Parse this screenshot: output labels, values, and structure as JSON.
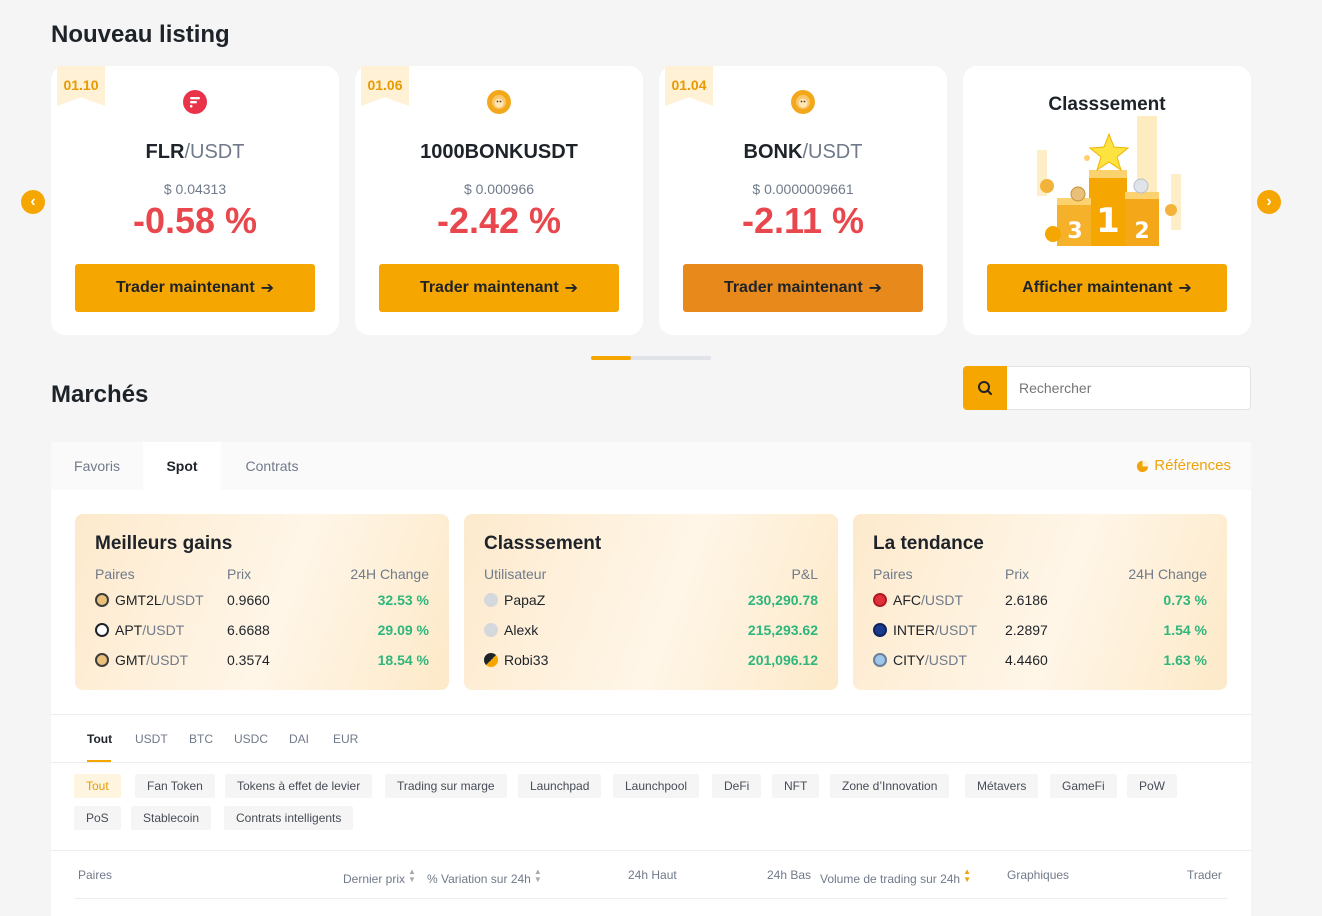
{
  "listing": {
    "title": "Nouveau listing",
    "cards": [
      {
        "date": "01.10",
        "base": "FLR",
        "quote": "/USDT",
        "price": "$ 0.04313",
        "change": "-0.58 %",
        "button": "Trader maintenant"
      },
      {
        "date": "01.06",
        "base": "1000BONKUSDT",
        "quote": "",
        "price": "$ 0.000966",
        "change": "-2.42 %",
        "button": "Trader maintenant"
      },
      {
        "date": "01.04",
        "base": "BONK",
        "quote": "/USDT",
        "price": "$ 0.0000009661",
        "change": "-2.11 %",
        "button": "Trader maintenant"
      }
    ],
    "ranking_card": {
      "title": "Classsement",
      "button": "Afficher maintenant"
    }
  },
  "markets": {
    "title": "Marchés",
    "search_placeholder": "Rechercher",
    "tabs": [
      "Favoris",
      "Spot",
      "Contrats"
    ],
    "active_tab": "Spot",
    "references": "Références",
    "best_gains": {
      "title": "Meilleurs gains",
      "headers": [
        "Paires",
        "Prix",
        "24H Change"
      ],
      "rows": [
        {
          "base": "GMT2L",
          "quote": "/USDT",
          "price": "0.9660",
          "change": "32.53 %"
        },
        {
          "base": "APT",
          "quote": "/USDT",
          "price": "6.6688",
          "change": "29.09 %"
        },
        {
          "base": "GMT",
          "quote": "/USDT",
          "price": "0.3574",
          "change": "18.54 %"
        }
      ]
    },
    "ranking": {
      "title": "Classsement",
      "headers": [
        "Utilisateur",
        "P&L"
      ],
      "rows": [
        {
          "user": "PapaZ",
          "pnl": "230,290.78"
        },
        {
          "user": "Alexk",
          "pnl": "215,293.62"
        },
        {
          "user": "Robi33",
          "pnl": "201,096.12"
        }
      ]
    },
    "trend": {
      "title": "La tendance",
      "headers": [
        "Paires",
        "Prix",
        "24H Change"
      ],
      "rows": [
        {
          "base": "AFC",
          "quote": "/USDT",
          "price": "2.6186",
          "change": "0.73 %"
        },
        {
          "base": "INTER",
          "quote": "/USDT",
          "price": "2.2897",
          "change": "1.54 %"
        },
        {
          "base": "CITY",
          "quote": "/USDT",
          "price": "4.4460",
          "change": "1.63 %"
        }
      ]
    },
    "quote_tabs": [
      "Tout",
      "USDT",
      "BTC",
      "USDC",
      "DAI",
      "EUR"
    ],
    "categories": [
      "Tout",
      "Fan Token",
      "Tokens à effet de levier",
      "Trading sur marge",
      "Launchpad",
      "Launchpool",
      "DeFi",
      "NFT",
      "Zone d’Innovation",
      "Métavers",
      "GameFi",
      "PoW",
      "PoS",
      "Stablecoin",
      "Contrats intelligents"
    ],
    "table_headers": {
      "pairs": "Paires",
      "last_price": "Dernier prix",
      "change_24h": "% Variation sur 24h",
      "high_24h": "24h Haut",
      "low_24h": "24h Bas",
      "volume_24h": "Volume de trading sur 24h",
      "charts": "Graphiques",
      "trade": "Trader"
    }
  },
  "colors": {
    "accent": "#f6a600",
    "negative": "#e8484d",
    "positive": "#2eb67d"
  }
}
